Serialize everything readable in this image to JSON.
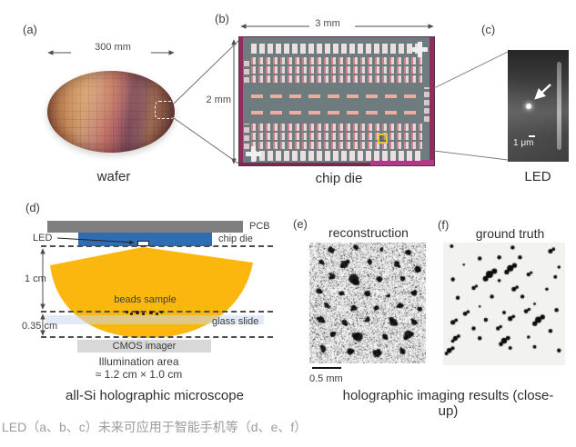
{
  "panels": {
    "a": {
      "label": "(a)",
      "dim": "300 mm",
      "caption": "wafer"
    },
    "b": {
      "label": "(b)",
      "dim_w": "3 mm",
      "dim_h": "2 mm",
      "caption": "chip die"
    },
    "c": {
      "label": "(c)",
      "scalebar": "1 μm",
      "caption": "LED"
    },
    "d": {
      "label": "(d)",
      "pcb_label": "PCB",
      "chipdie_label": "chip die",
      "led_label": "LED",
      "dist1": "1 cm",
      "dist2": "0.35 cm",
      "beads_label": "beads sample",
      "glass_label": "glass slide",
      "cmos_label": "CMOS imager",
      "illum_line1": "Illumination area",
      "illum_line2": "≈ 1.2 cm × 1.0 cm",
      "caption": "all-Si holographic microscope"
    },
    "e": {
      "label": "(e)",
      "title": "reconstruction",
      "scalebar": "0.5 mm"
    },
    "f": {
      "label": "(f)",
      "title": "ground truth"
    }
  },
  "captions": {
    "results": "holographic imaging results (close-up)",
    "bottom": "LED（a、b、c）未来可应用于智能手机等（d、e、f）"
  },
  "colors": {
    "cone": "#FBB70E",
    "chip_blue": "#2E6DB4",
    "pcb_gray": "#7F7F7F",
    "cmos_gray": "#D8D8D8",
    "die_magenta": "#8E2F5E",
    "caption_gray": "#9C9C9C"
  },
  "e_blobs": [
    [
      18,
      6,
      3
    ],
    [
      40,
      4,
      2.5
    ],
    [
      62,
      6,
      2
    ],
    [
      85,
      8,
      3
    ],
    [
      10,
      16,
      2.5
    ],
    [
      30,
      18,
      4
    ],
    [
      52,
      16,
      2.5
    ],
    [
      75,
      18,
      3
    ],
    [
      93,
      22,
      3.5
    ],
    [
      20,
      28,
      3
    ],
    [
      38,
      30,
      5.5
    ],
    [
      60,
      30,
      3
    ],
    [
      80,
      30,
      2.5
    ],
    [
      8,
      40,
      3
    ],
    [
      28,
      42,
      2.5
    ],
    [
      50,
      42,
      3
    ],
    [
      68,
      44,
      2
    ],
    [
      90,
      42,
      3
    ],
    [
      15,
      52,
      2.5
    ],
    [
      38,
      54,
      3
    ],
    [
      58,
      54,
      2.5
    ],
    [
      78,
      52,
      3
    ],
    [
      95,
      55,
      2.5
    ],
    [
      10,
      64,
      3.5
    ],
    [
      30,
      66,
      3
    ],
    [
      50,
      64,
      2.5
    ],
    [
      72,
      66,
      4
    ],
    [
      90,
      66,
      3
    ],
    [
      20,
      76,
      3
    ],
    [
      42,
      78,
      5
    ],
    [
      65,
      78,
      3
    ],
    [
      85,
      76,
      4.5
    ],
    [
      12,
      88,
      3
    ],
    [
      35,
      90,
      3.5
    ],
    [
      58,
      92,
      4
    ],
    [
      80,
      90,
      3
    ]
  ],
  "f_dots": [
    [
      7,
      3,
      2,
      1
    ],
    [
      57,
      4,
      2.2,
      1
    ],
    [
      88,
      7,
      2.5,
      2
    ],
    [
      30,
      13,
      2.2,
      1
    ],
    [
      46,
      12,
      2.2,
      1
    ],
    [
      63,
      12,
      2.2,
      1
    ],
    [
      17,
      18,
      1.2,
      1
    ],
    [
      95,
      20,
      1.8,
      1
    ],
    [
      55,
      21,
      3.5,
      3
    ],
    [
      38,
      26,
      4,
      3
    ],
    [
      70,
      26,
      2.2,
      2
    ],
    [
      92,
      28,
      2,
      1
    ],
    [
      8,
      30,
      2.2,
      1
    ],
    [
      46,
      31,
      1.8,
      1
    ],
    [
      25,
      37,
      2.2,
      2
    ],
    [
      58,
      38,
      2.5,
      2
    ],
    [
      85,
      38,
      1.8,
      1
    ],
    [
      12,
      45,
      2.2,
      1
    ],
    [
      40,
      44,
      2.2,
      1
    ],
    [
      65,
      44,
      2.2,
      1
    ],
    [
      30,
      52,
      1.2,
      1
    ],
    [
      75,
      50,
      1.4,
      1
    ],
    [
      18,
      58,
      2.4,
      2
    ],
    [
      50,
      57,
      2,
      1
    ],
    [
      68,
      56,
      2.4,
      2
    ],
    [
      93,
      55,
      2.2,
      1
    ],
    [
      8,
      65,
      2.6,
      2
    ],
    [
      35,
      63,
      2.2,
      1
    ],
    [
      55,
      62,
      2.6,
      2
    ],
    [
      78,
      63,
      3.5,
      3
    ],
    [
      25,
      70,
      2.2,
      1
    ],
    [
      45,
      70,
      2.2,
      2
    ],
    [
      88,
      72,
      2.2,
      1
    ],
    [
      10,
      78,
      2.6,
      3
    ],
    [
      30,
      78,
      2.2,
      1
    ],
    [
      50,
      80,
      3.2,
      3
    ],
    [
      70,
      77,
      1.8,
      1
    ],
    [
      5,
      88,
      2.8,
      3
    ],
    [
      55,
      86,
      2,
      1
    ],
    [
      75,
      85,
      2,
      1
    ],
    [
      95,
      88,
      2.2,
      1
    ]
  ],
  "beads": [
    [
      138,
      342,
      3
    ],
    [
      143,
      344,
      3
    ],
    [
      149,
      342,
      4
    ],
    [
      156,
      344,
      3
    ],
    [
      164,
      342,
      4
    ],
    [
      171,
      344,
      3
    ],
    [
      176,
      342,
      3
    ]
  ]
}
